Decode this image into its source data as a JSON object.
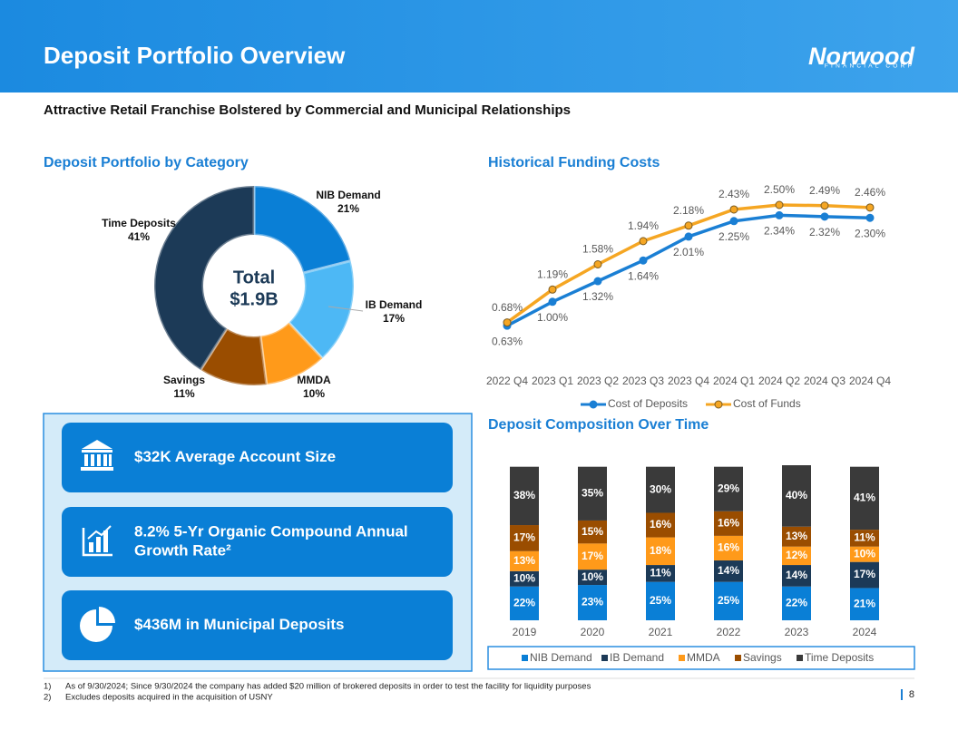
{
  "header": {
    "title": "Deposit Portfolio Overview",
    "logo": "Norwood",
    "logo_tagline": "FINANCIAL CORP"
  },
  "subtitle": "Attractive Retail Franchise Bolstered by Commercial and Municipal Relationships",
  "chart_data": [
    {
      "type": "pie",
      "title": "Deposit Portfolio by Category",
      "center_title": "Total",
      "center_value": "$1.9B",
      "categories": [
        "NIB Demand",
        "IB Demand",
        "MMDA",
        "Savings",
        "Time Deposits"
      ],
      "values": [
        21,
        17,
        10,
        11,
        41
      ],
      "value_labels": [
        "21%",
        "17%",
        "10%",
        "11%",
        "41%"
      ],
      "colors": [
        "#0a7fd6",
        "#4db8f5",
        "#ff9a1a",
        "#9a4d00",
        "#1c3a57"
      ]
    },
    {
      "type": "line",
      "title": "Historical Funding Costs",
      "categories": [
        "2022 Q4",
        "2023 Q1",
        "2023 Q2",
        "2023 Q3",
        "2023 Q4",
        "2024 Q1",
        "2024 Q2",
        "2024 Q3",
        "2024 Q4"
      ],
      "series": [
        {
          "name": "Cost of Deposits",
          "color": "#1a7fd4",
          "values": [
            0.63,
            1.0,
            1.32,
            1.64,
            2.01,
            2.25,
            2.34,
            2.32,
            2.3
          ],
          "value_labels": [
            "0.63%",
            "1.00%",
            "1.32%",
            "1.64%",
            "2.01%",
            "2.25%",
            "2.34%",
            "2.32%",
            "2.30%"
          ]
        },
        {
          "name": "Cost of Funds",
          "color": "#f5a623",
          "values": [
            0.68,
            1.19,
            1.58,
            1.94,
            2.18,
            2.43,
            2.5,
            2.49,
            2.46
          ],
          "value_labels": [
            "0.68%",
            "1.19%",
            "1.58%",
            "1.94%",
            "2.18%",
            "2.43%",
            "2.50%",
            "2.49%",
            "2.46%"
          ]
        }
      ]
    },
    {
      "type": "stacked-bar",
      "title": "Deposit Composition Over Time",
      "categories": [
        "2019",
        "2020",
        "2021",
        "2022",
        "2023",
        "2024"
      ],
      "series": [
        {
          "name": "NIB Demand",
          "color": "#0a7fd6",
          "values": [
            22,
            23,
            25,
            25,
            22,
            21
          ],
          "value_labels": [
            "22%",
            "23%",
            "25%",
            "25%",
            "22%",
            "21%"
          ]
        },
        {
          "name": "IB Demand",
          "color": "#1c3a57",
          "values": [
            10,
            10,
            11,
            14,
            14,
            17
          ],
          "value_labels": [
            "10%",
            "10%",
            "11%",
            "14%",
            "14%",
            "17%"
          ]
        },
        {
          "name": "MMDA",
          "color": "#ff9a1a",
          "values": [
            13,
            17,
            18,
            16,
            12,
            10
          ],
          "value_labels": [
            "13%",
            "17%",
            "18%",
            "16%",
            "12%",
            "10%"
          ]
        },
        {
          "name": "Savings",
          "color": "#9a4d00",
          "values": [
            17,
            15,
            16,
            16,
            13,
            11
          ],
          "value_labels": [
            "17%",
            "15%",
            "16%",
            "16%",
            "13%",
            "11%"
          ]
        },
        {
          "name": "Time Deposits",
          "color": "#3a3a3a",
          "values": [
            38,
            35,
            30,
            29,
            40,
            41
          ],
          "value_labels": [
            "38%",
            "35%",
            "30%",
            "29%",
            "40%",
            "41%"
          ]
        }
      ]
    }
  ],
  "callouts": [
    [
      "$32K Average Account Size"
    ],
    [
      "8.2% 5-Yr Organic Compound Annual",
      "Growth Rate²"
    ],
    [
      "$436M in Municipal Deposits"
    ]
  ],
  "footnotes": [
    {
      "marker": "1)",
      "text": "As of 9/30/2024; Since 9/30/2024 the company has added $20 million of brokered deposits in order to test the facility for liquidity purposes"
    },
    {
      "marker": "2)",
      "text": "Excludes deposits acquired in the acquisition of USNY"
    }
  ],
  "page_number": "8"
}
